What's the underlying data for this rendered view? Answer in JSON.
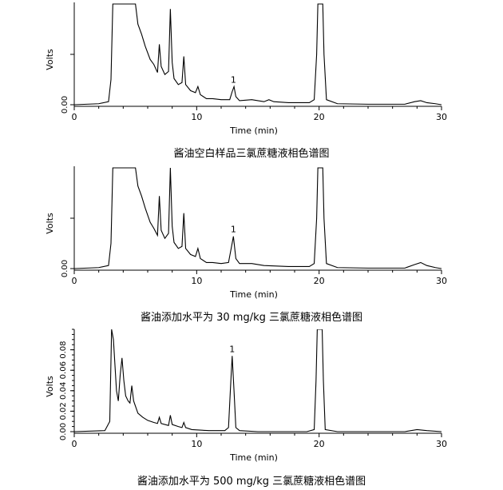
{
  "chart_data": [
    {
      "type": "line",
      "caption": "酱油空白样品三氯蔗糖液相色谱图",
      "xlabel": "Time (min)",
      "ylabel": "Volts",
      "xlim": [
        0,
        30
      ],
      "x_ticks": [
        "0",
        "10",
        "20",
        "30"
      ],
      "y_ticks": [
        "0.00"
      ],
      "peak_label": {
        "text": "1",
        "x": 13.0
      },
      "series": [
        {
          "x": [
            0,
            2,
            2.8,
            3.0,
            3.15,
            3.3,
            5.0,
            5.2,
            5.5,
            5.8,
            6.2,
            6.5,
            6.8,
            6.95,
            7.1,
            7.4,
            7.7,
            7.85,
            8.0,
            8.15,
            8.5,
            8.8,
            8.95,
            9.1,
            9.5,
            9.9,
            10.1,
            10.3,
            10.8,
            11.3,
            12.0,
            12.7,
            12.9,
            13.05,
            13.2,
            13.5,
            14.5,
            15.5,
            15.9,
            16.3,
            17.5,
            19.2,
            19.6,
            19.8,
            19.9,
            20.3,
            20.4,
            20.6,
            21.5,
            24,
            27,
            27.8,
            28.3,
            28.8,
            29.5,
            30
          ],
          "y": [
            0,
            0.01,
            0.03,
            0.25,
            1.0,
            1.0,
            1.0,
            0.8,
            0.7,
            0.58,
            0.45,
            0.4,
            0.32,
            0.6,
            0.38,
            0.3,
            0.33,
            0.95,
            0.42,
            0.26,
            0.2,
            0.22,
            0.48,
            0.2,
            0.14,
            0.12,
            0.18,
            0.1,
            0.06,
            0.06,
            0.05,
            0.05,
            0.13,
            0.18,
            0.08,
            0.04,
            0.05,
            0.03,
            0.05,
            0.03,
            0.02,
            0.02,
            0.05,
            0.5,
            1.0,
            1.0,
            0.5,
            0.05,
            0.01,
            0.005,
            0.005,
            0.03,
            0.04,
            0.02,
            0.01,
            0
          ]
        }
      ]
    },
    {
      "type": "line",
      "caption": "酱油添加水平为 30 mg/kg 三氯蔗糖液相色谱图",
      "xlabel": "Time (min)",
      "ylabel": "Volts",
      "xlim": [
        0,
        30
      ],
      "x_ticks": [
        "0",
        "10",
        "20",
        "30"
      ],
      "y_ticks": [
        "0.00"
      ],
      "peak_label": {
        "text": "1",
        "x": 13.0
      },
      "series": [
        {
          "x": [
            0,
            2,
            2.8,
            3.0,
            3.15,
            3.3,
            5.0,
            5.2,
            5.5,
            5.8,
            6.2,
            6.5,
            6.8,
            6.95,
            7.1,
            7.4,
            7.7,
            7.85,
            8.0,
            8.15,
            8.5,
            8.8,
            8.95,
            9.1,
            9.5,
            9.9,
            10.1,
            10.3,
            10.8,
            11.3,
            12.0,
            12.6,
            12.85,
            13.0,
            13.2,
            13.5,
            14.5,
            15.5,
            17.5,
            19.2,
            19.6,
            19.8,
            19.9,
            20.3,
            20.4,
            20.6,
            21.5,
            24,
            27,
            27.8,
            28.3,
            28.8,
            29.5,
            30
          ],
          "y": [
            0,
            0.01,
            0.03,
            0.25,
            1.0,
            1.0,
            1.0,
            0.82,
            0.72,
            0.6,
            0.46,
            0.4,
            0.33,
            0.72,
            0.38,
            0.3,
            0.35,
            1.0,
            0.42,
            0.26,
            0.2,
            0.22,
            0.55,
            0.2,
            0.14,
            0.12,
            0.2,
            0.1,
            0.06,
            0.06,
            0.05,
            0.06,
            0.22,
            0.32,
            0.1,
            0.05,
            0.05,
            0.03,
            0.02,
            0.02,
            0.05,
            0.5,
            1.0,
            1.0,
            0.5,
            0.05,
            0.01,
            0.005,
            0.005,
            0.04,
            0.06,
            0.03,
            0.01,
            0
          ]
        }
      ]
    },
    {
      "type": "line",
      "caption": "酱油添加水平为 500 mg/kg 三氯蔗糖液相色谱图",
      "xlabel": "Time (min)",
      "ylabel": "Volts",
      "xlim": [
        0,
        30
      ],
      "ylim": [
        0,
        0.1
      ],
      "x_ticks": [
        "0",
        "10",
        "20",
        "30"
      ],
      "y_ticks": [
        "0.00",
        "0.02",
        "0.04",
        "0.06",
        "0.08"
      ],
      "peak_label": {
        "text": "1",
        "x": 12.9
      },
      "series": [
        {
          "x": [
            0,
            2.5,
            2.9,
            3.05,
            3.2,
            3.45,
            3.6,
            3.75,
            3.9,
            4.05,
            4.2,
            4.4,
            4.55,
            4.7,
            4.85,
            5.2,
            5.6,
            6.0,
            6.5,
            6.8,
            6.95,
            7.1,
            7.7,
            7.85,
            8.0,
            8.5,
            8.8,
            8.95,
            9.1,
            9.6,
            11,
            12.3,
            12.6,
            12.75,
            12.9,
            13.05,
            13.2,
            13.5,
            15,
            19,
            19.6,
            19.75,
            19.85,
            20.25,
            20.35,
            20.5,
            21.5,
            27,
            28,
            28.8,
            30
          ],
          "y": [
            0,
            0.001,
            0.01,
            0.1,
            0.09,
            0.04,
            0.03,
            0.055,
            0.072,
            0.05,
            0.035,
            0.03,
            0.028,
            0.045,
            0.03,
            0.018,
            0.014,
            0.011,
            0.009,
            0.008,
            0.014,
            0.008,
            0.006,
            0.016,
            0.007,
            0.005,
            0.004,
            0.009,
            0.004,
            0.002,
            0.001,
            0.001,
            0.004,
            0.04,
            0.074,
            0.04,
            0.004,
            0.001,
            0,
            0,
            0.002,
            0.05,
            0.1,
            0.1,
            0.05,
            0.002,
            0,
            0,
            0.002,
            0.001,
            0
          ]
        }
      ]
    }
  ]
}
